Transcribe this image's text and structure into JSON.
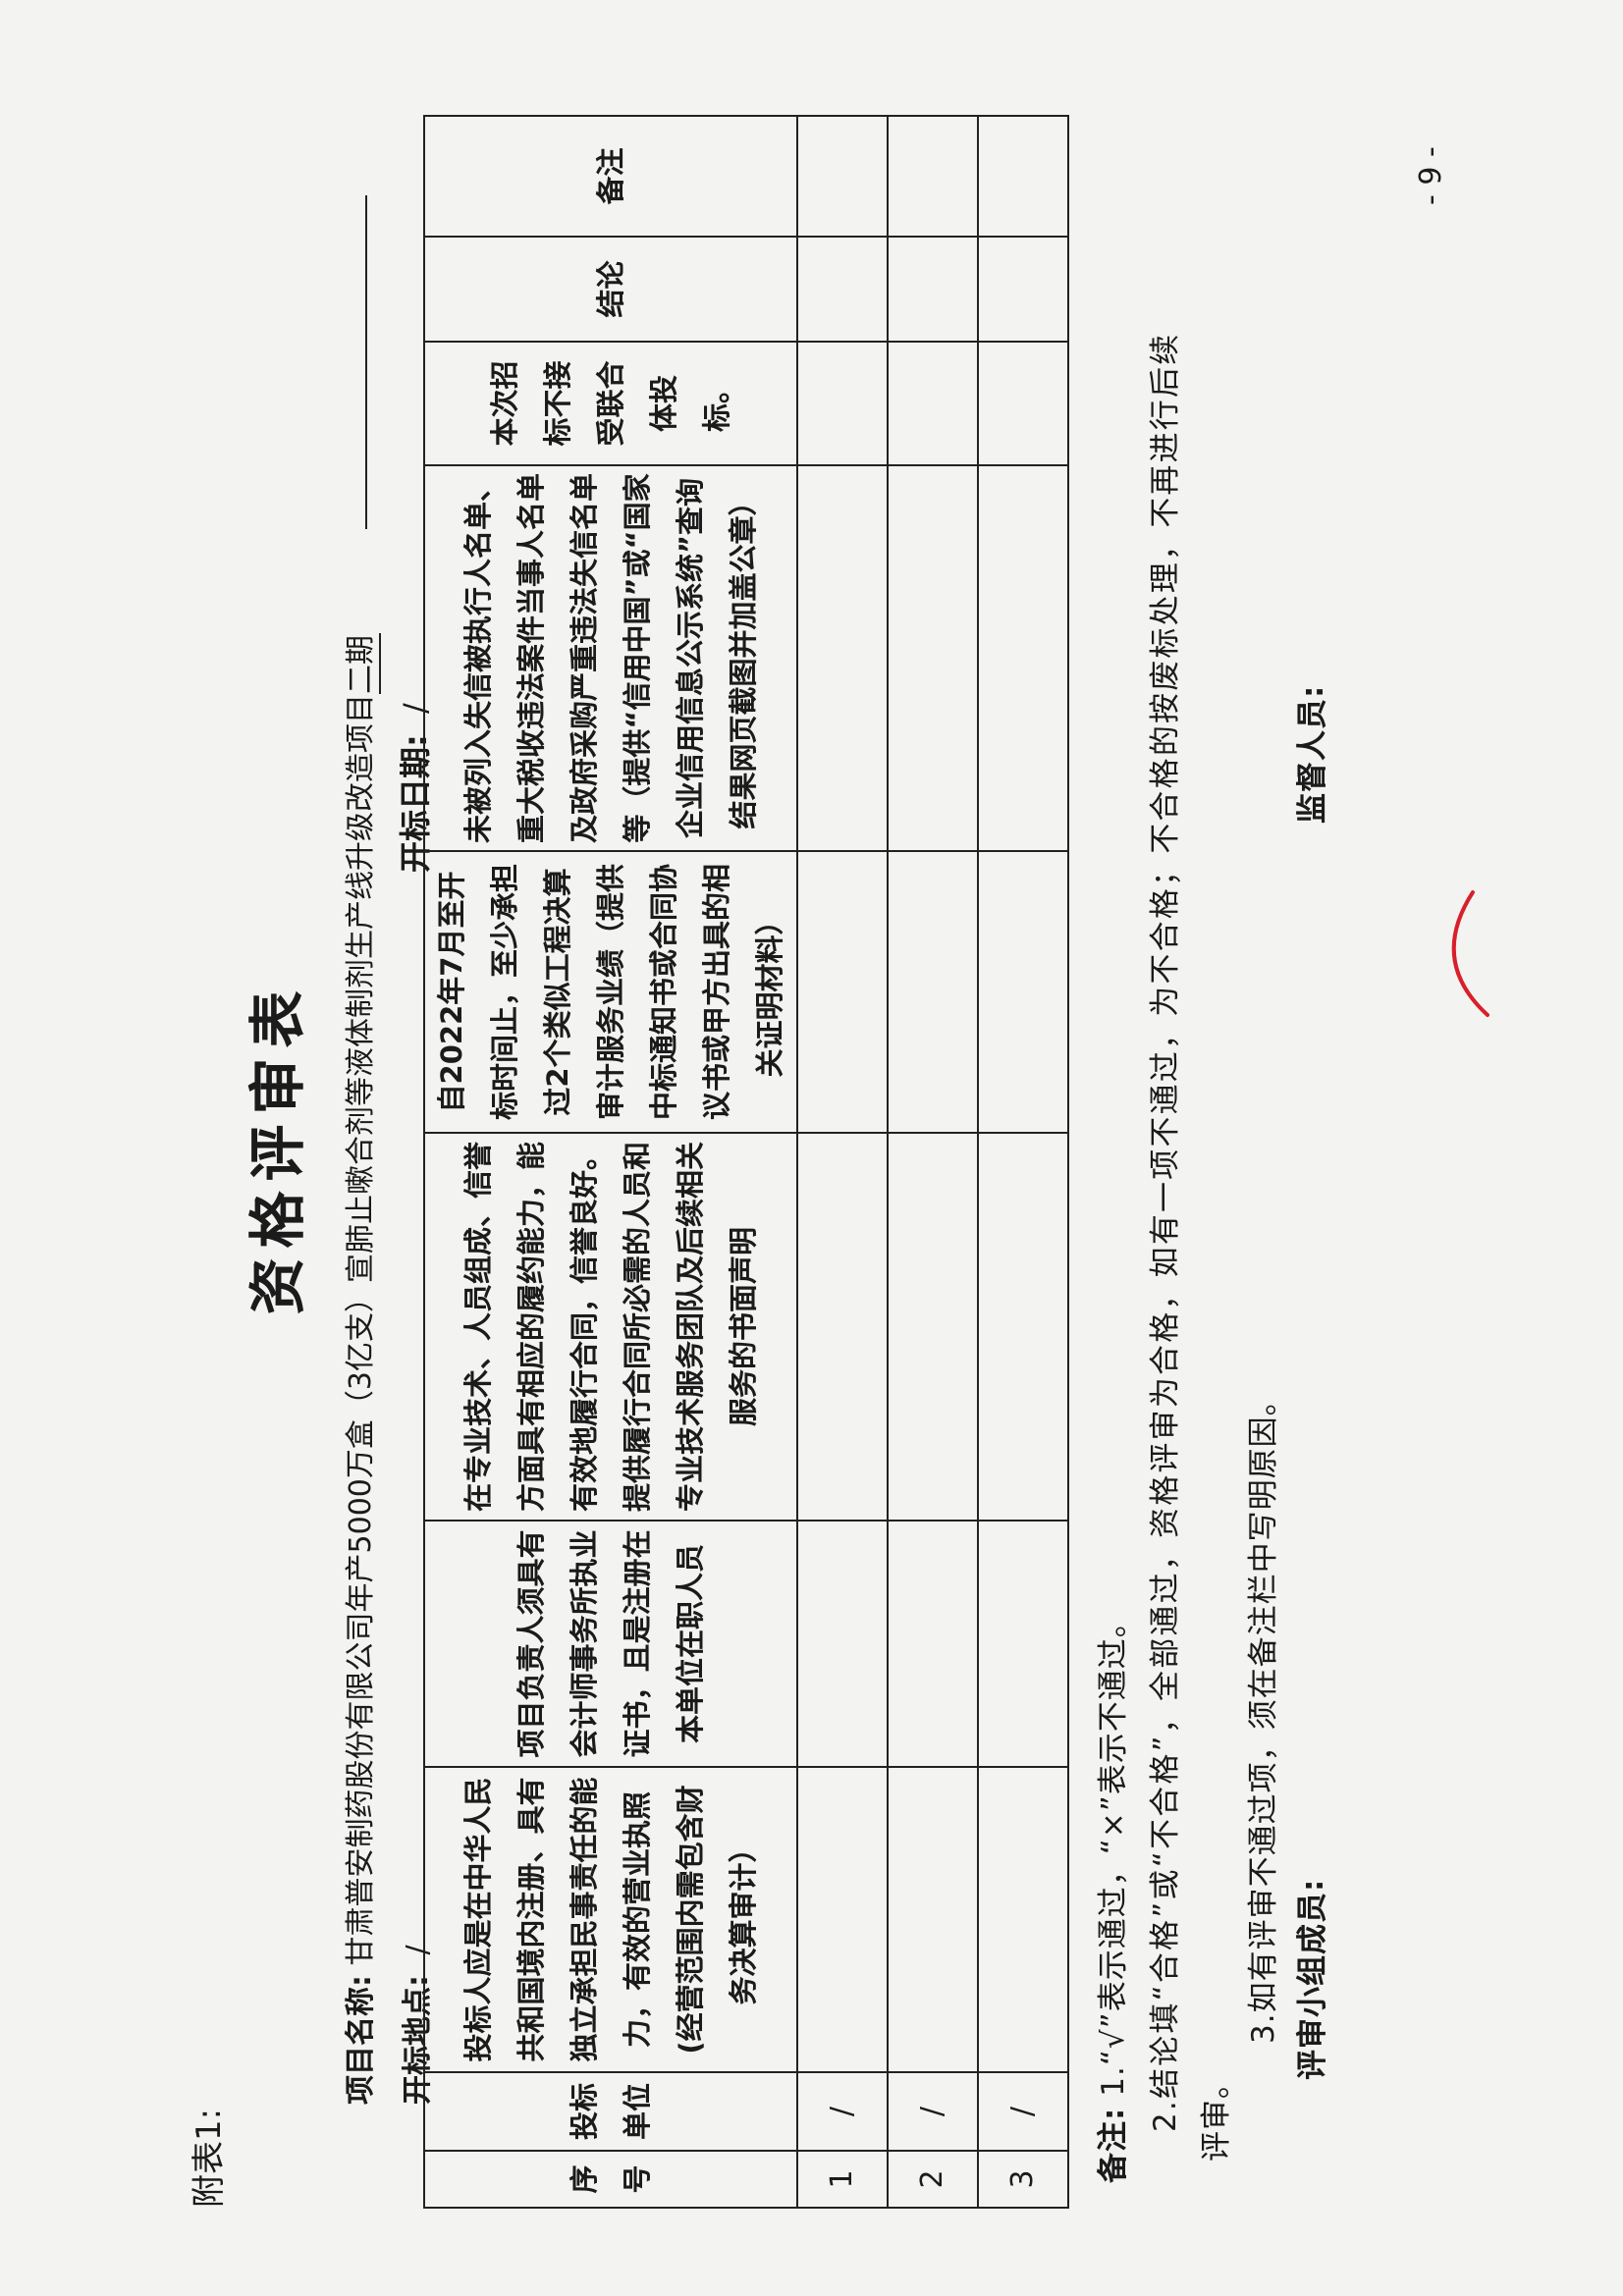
{
  "appendix": "附表1:",
  "title": "资格评审表",
  "project": {
    "label": "项目名称:",
    "name_main": "甘肃普安制药股份有限公司年产5000万盒（3亿支）宣肺止嗽合剂等液体制剂生产线升级改造项目",
    "name_tail": "二期"
  },
  "bid_place": {
    "label": "开标地点:",
    "value": "/"
  },
  "bid_date": {
    "label": "开标日期:",
    "value": "/"
  },
  "table": {
    "headers": [
      "序号",
      "投标单位",
      "投标人应是在中华人民共和国境内注册、具有独立承担民事责任的能力，有效的营业执照(经营范围内需包含财务决算审计）",
      "项目负责人须具有会计师事务所执业证书，且是注册在本单位在职人员",
      "在专业技术、人员组成、信誉方面具有相应的履约能力，能有效地履行合同，信誉良好。提供履行合同所必需的人员和专业技术服务团队及后续相关服务的书面声明",
      "自2022年7月至开标时间止，至少承担过2个类似工程决算审计服务业绩（提供中标通知书或合同协议书或甲方出具的相关证明材料）",
      "未被列入失信被执行人名单、重大税收违法案件当事人名单及政府采购严重违法失信名单等（提供“信用中国”或“国家企业信用信息公示系统”查询结果网页截图并加盖公章）",
      "本次招标不接受联合体投标。",
      "结论",
      "备注"
    ],
    "rows": [
      {
        "no": "1",
        "bidder": "/"
      },
      {
        "no": "2",
        "bidder": "/"
      },
      {
        "no": "3",
        "bidder": "/"
      }
    ]
  },
  "notes": {
    "label": "备注:",
    "line1": "1.“√”表示通过，“×”表示不通过。",
    "line2": "2.结论填“合格”或“不合格”，全部通过，资格评审为合格，如有一项不通过，为不合格；不合格的按废标处理，不再进行后续",
    "line2_cont": "评审。",
    "line3": "3.如有评审不通过项，须在备注栏中写明原因。"
  },
  "signatures": {
    "panel": "评审小组成员:",
    "supervisor": "监督人员:"
  },
  "page_number": "- 9 -",
  "colors": {
    "ink": "#1b1b1b",
    "paper": "#f3f3f1",
    "red_mark": "#d8202a"
  }
}
